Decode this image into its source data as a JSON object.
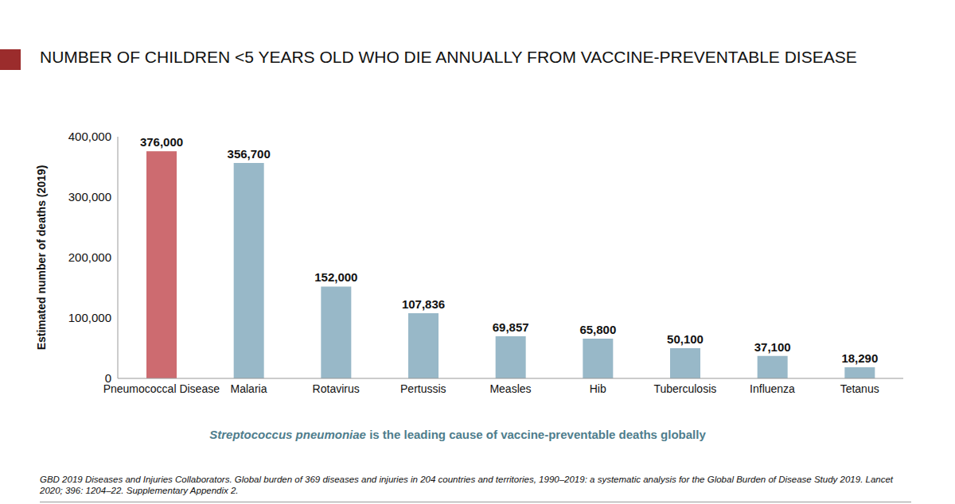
{
  "chart_data": {
    "type": "bar",
    "title": "NUMBER OF CHILDREN <5 YEARS OLD WHO DIE ANNUALLY FROM VACCINE-PREVENTABLE DISEASE",
    "ylabel": "Estimated number of deaths (2019)",
    "categories": [
      "Pneumococcal Disease",
      "Malaria",
      "Rotavirus",
      "Pertussis",
      "Measles",
      "Hib",
      "Tuberculosis",
      "Influenza",
      "Tetanus"
    ],
    "values": [
      376000,
      356700,
      152000,
      107836,
      69857,
      65800,
      50100,
      37100,
      18290
    ],
    "value_labels": [
      "376,000",
      "356,700",
      "152,000",
      "107,836",
      "69,857",
      "65,800",
      "50,100",
      "37,100",
      "18,290"
    ],
    "colors": [
      "#cd6b70",
      "#98b8c8",
      "#98b8c8",
      "#98b8c8",
      "#98b8c8",
      "#98b8c8",
      "#98b8c8",
      "#98b8c8",
      "#98b8c8"
    ],
    "ylim": [
      0,
      400000
    ],
    "yticks": [
      0,
      {
        "value": 100000,
        "label": "100,000"
      },
      {
        "value": 200000,
        "label": "200,000"
      },
      {
        "value": 300000,
        "label": "300,000"
      },
      {
        "value": 400000,
        "label": "400,000"
      }
    ],
    "grid": false,
    "data_labels": true,
    "annotation": "Streptococcus pneumoniae is the leading cause of vaccine-preventable deaths globally",
    "source": "GBD 2019 Diseases and Injuries Collaborators. Global burden of 369 diseases and injuries in 204 countries and territories, 1990–2019: a systematic analysis for the Global Burden of Disease Study 2019. Lancet 2020; 396: 1204–22. Supplementary Appendix 2."
  }
}
